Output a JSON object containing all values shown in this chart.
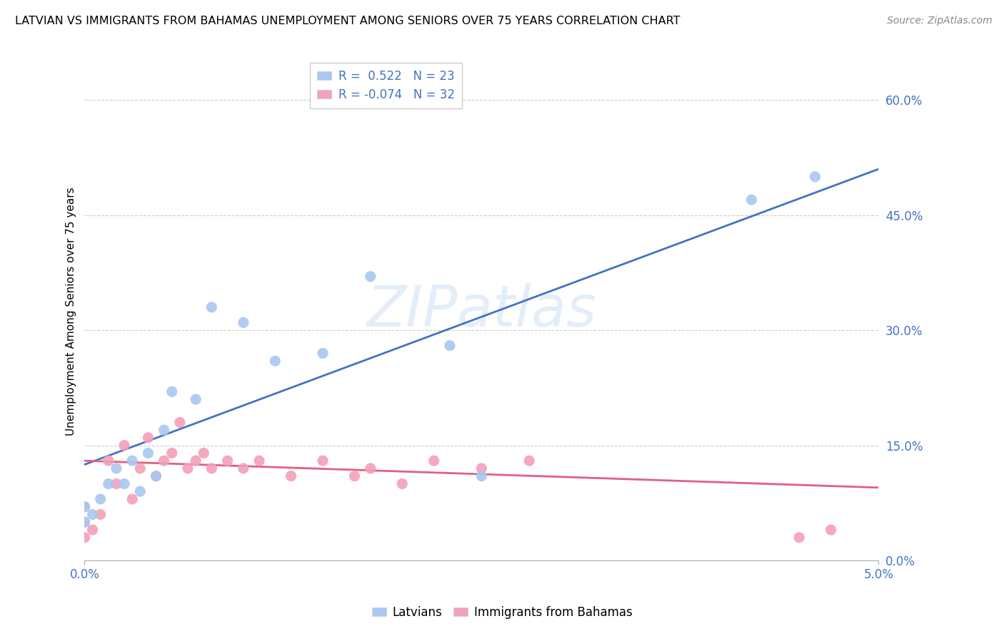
{
  "title": "LATVIAN VS IMMIGRANTS FROM BAHAMAS UNEMPLOYMENT AMONG SENIORS OVER 75 YEARS CORRELATION CHART",
  "source": "Source: ZipAtlas.com",
  "ylabel": "Unemployment Among Seniors over 75 years",
  "latvians_R": 0.522,
  "latvians_N": 23,
  "bahamas_R": -0.074,
  "bahamas_N": 32,
  "xlim": [
    0.0,
    5.0
  ],
  "ylim": [
    0.0,
    65.0
  ],
  "yticks": [
    0.0,
    15.0,
    30.0,
    45.0,
    60.0
  ],
  "ytick_labels": [
    "0.0%",
    "15.0%",
    "30.0%",
    "45.0%",
    "60.0%"
  ],
  "blue_color": "#a8c8f0",
  "pink_color": "#f4a0b8",
  "blue_line_color": "#4472c4",
  "pink_line_color": "#e06080",
  "blue_label_color": "#4472c4",
  "latvians_x": [
    0.0,
    0.0,
    0.05,
    0.1,
    0.15,
    0.2,
    0.25,
    0.3,
    0.35,
    0.4,
    0.45,
    0.5,
    0.55,
    0.7,
    0.8,
    1.0,
    1.2,
    1.5,
    1.8,
    2.3,
    2.5,
    4.2,
    4.6
  ],
  "latvians_y": [
    5.0,
    7.0,
    6.0,
    8.0,
    10.0,
    12.0,
    10.0,
    13.0,
    9.0,
    14.0,
    11.0,
    17.0,
    22.0,
    21.0,
    33.0,
    31.0,
    26.0,
    27.0,
    37.0,
    28.0,
    11.0,
    47.0,
    50.0
  ],
  "latvians_sizes": [
    200,
    150,
    100,
    100,
    100,
    100,
    100,
    100,
    100,
    100,
    100,
    100,
    100,
    100,
    100,
    100,
    100,
    100,
    100,
    100,
    100,
    100,
    100
  ],
  "bahamas_x": [
    0.0,
    0.0,
    0.0,
    0.05,
    0.1,
    0.15,
    0.2,
    0.25,
    0.3,
    0.35,
    0.4,
    0.45,
    0.5,
    0.55,
    0.6,
    0.65,
    0.7,
    0.75,
    0.8,
    0.9,
    1.0,
    1.1,
    1.3,
    1.5,
    1.7,
    1.8,
    2.0,
    2.2,
    2.5,
    2.8,
    4.5,
    4.7
  ],
  "bahamas_y": [
    3.0,
    5.0,
    7.0,
    4.0,
    6.0,
    13.0,
    10.0,
    15.0,
    8.0,
    12.0,
    16.0,
    11.0,
    13.0,
    14.0,
    18.0,
    12.0,
    13.0,
    14.0,
    12.0,
    13.0,
    12.0,
    13.0,
    11.0,
    13.0,
    11.0,
    12.0,
    10.0,
    13.0,
    12.0,
    13.0,
    3.0,
    4.0
  ],
  "bahamas_sizes": [
    200,
    150,
    100,
    100,
    100,
    100,
    100,
    100,
    100,
    100,
    100,
    100,
    100,
    100,
    100,
    100,
    100,
    100,
    100,
    100,
    100,
    100,
    100,
    100,
    100,
    100,
    100,
    100,
    100,
    100,
    100,
    100
  ],
  "trend_blue_x0": 0.0,
  "trend_blue_y0": 12.5,
  "trend_blue_x1": 5.0,
  "trend_blue_y1": 51.0,
  "trend_pink_x0": 0.0,
  "trend_pink_y0": 13.0,
  "trend_pink_x1": 5.0,
  "trend_pink_y1": 9.5
}
